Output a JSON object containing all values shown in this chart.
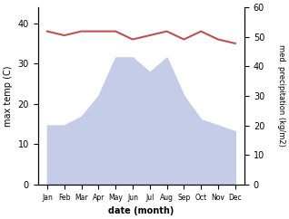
{
  "months": [
    "Jan",
    "Feb",
    "Mar",
    "Apr",
    "May",
    "Jun",
    "Jul",
    "Aug",
    "Sep",
    "Oct",
    "Nov",
    "Dec"
  ],
  "temperature": [
    38,
    37,
    38,
    38,
    38,
    36,
    37,
    38,
    36,
    38,
    36,
    35
  ],
  "precipitation": [
    20,
    20,
    23,
    30,
    43,
    43,
    38,
    43,
    30,
    22,
    20,
    18
  ],
  "temp_color": "#c0504d",
  "precip_fill_color": "#c5cce8",
  "left_ylabel": "max temp (C)",
  "right_ylabel": "med. precipitation (kg/m2)",
  "xlabel": "date (month)",
  "left_ylim": [
    0,
    44
  ],
  "right_ylim": [
    0,
    60
  ],
  "left_yticks": [
    0,
    10,
    20,
    30,
    40
  ],
  "right_yticks": [
    0,
    10,
    20,
    30,
    40,
    50,
    60
  ]
}
